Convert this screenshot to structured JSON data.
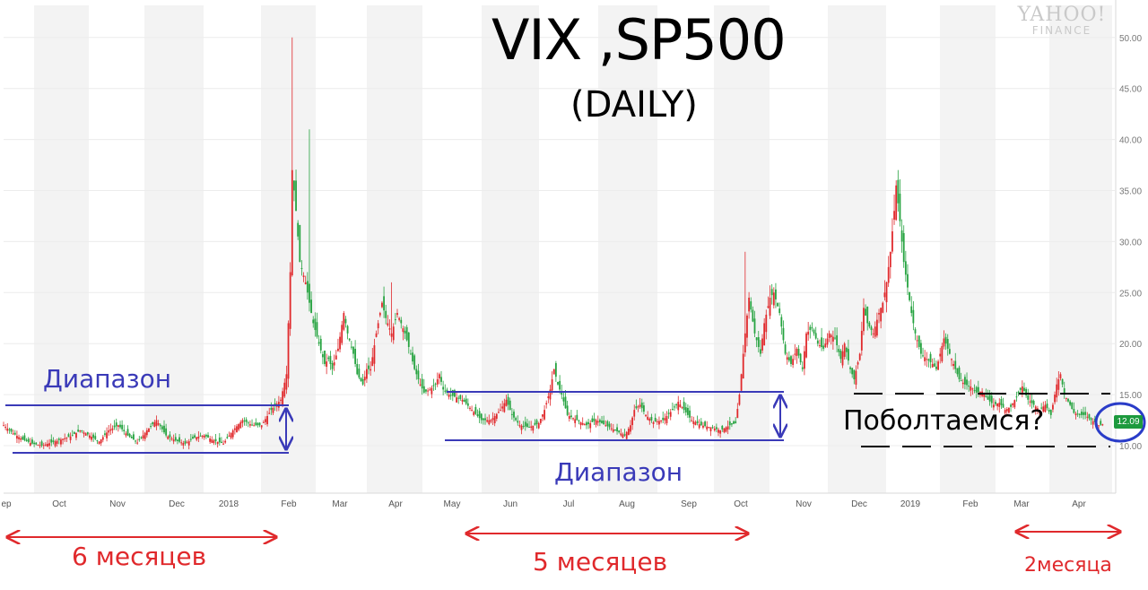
{
  "chart_data": {
    "type": "candlestick",
    "title": "VIX ,SP500",
    "subtitle": "(DAILY)",
    "ylim": [
      7.6,
      51.6
    ],
    "yticks": [
      "50.00",
      "45.00",
      "40.00",
      "35.00",
      "30.00",
      "25.00",
      "20.00",
      "15.00",
      "10.00"
    ],
    "x_ticks": [
      "ep",
      "Oct",
      "Nov",
      "Dec",
      "2018",
      "Feb",
      "Mar",
      "Apr",
      "May",
      "Jun",
      "Jul",
      "Aug",
      "Sep",
      "Oct",
      "Nov",
      "Dec",
      "2019",
      "Feb",
      "Mar",
      "Apr"
    ],
    "grid": "vertical month bands",
    "series": [
      {
        "frequency": "daily",
        "points": [
          [
            0,
            12.0
          ],
          [
            5,
            11.2
          ],
          [
            10,
            10.6
          ],
          [
            15,
            10.2
          ],
          [
            20,
            10.0
          ],
          [
            25,
            10.3
          ],
          [
            30,
            10.6
          ],
          [
            35,
            10.9
          ],
          [
            40,
            11.5
          ],
          [
            45,
            11.0
          ],
          [
            50,
            10.4
          ],
          [
            55,
            11.5
          ],
          [
            60,
            12.0
          ],
          [
            65,
            11.0
          ],
          [
            70,
            10.3
          ],
          [
            75,
            11.5
          ],
          [
            80,
            12.5
          ],
          [
            85,
            11.0
          ],
          [
            90,
            10.5
          ],
          [
            95,
            10.2
          ],
          [
            100,
            10.8
          ],
          [
            105,
            11.0
          ],
          [
            110,
            10.5
          ],
          [
            115,
            10.2
          ],
          [
            120,
            11.5
          ],
          [
            125,
            12.5
          ],
          [
            130,
            12.0
          ],
          [
            135,
            12.0
          ],
          [
            140,
            13.5
          ],
          [
            145,
            14.5
          ],
          [
            148,
            17.0
          ],
          [
            150,
            27.0
          ],
          [
            151,
            37.0
          ],
          [
            153,
            33.0
          ],
          [
            155,
            28.0
          ],
          [
            158,
            26.0
          ],
          [
            160,
            24.0
          ],
          [
            162,
            22.0
          ],
          [
            165,
            20.0
          ],
          [
            168,
            18.0
          ],
          [
            170,
            18.5
          ],
          [
            172,
            17.5
          ],
          [
            175,
            19.5
          ],
          [
            178,
            23.0
          ],
          [
            180,
            21.0
          ],
          [
            183,
            19.0
          ],
          [
            185,
            17.0
          ],
          [
            188,
            16.0
          ],
          [
            190,
            17.5
          ],
          [
            192,
            17.5
          ],
          [
            195,
            21.0
          ],
          [
            198,
            24.0
          ],
          [
            200,
            22.5
          ],
          [
            203,
            21.0
          ],
          [
            206,
            23.0
          ],
          [
            208,
            22.0
          ],
          [
            210,
            21.0
          ],
          [
            213,
            19.0
          ],
          [
            215,
            17.5
          ],
          [
            218,
            16.0
          ],
          [
            220,
            15.2
          ],
          [
            223,
            15.5
          ],
          [
            226,
            16.0
          ],
          [
            228,
            17.0
          ],
          [
            230,
            15.5
          ],
          [
            233,
            15.0
          ],
          [
            236,
            14.8
          ],
          [
            240,
            14.5
          ],
          [
            245,
            13.5
          ],
          [
            250,
            12.5
          ],
          [
            255,
            12.5
          ],
          [
            260,
            13.5
          ],
          [
            263,
            14.5
          ],
          [
            266,
            13.0
          ],
          [
            270,
            12.0
          ],
          [
            275,
            11.8
          ],
          [
            280,
            12.2
          ],
          [
            283,
            13.5
          ],
          [
            286,
            15.5
          ],
          [
            288,
            17.5
          ],
          [
            290,
            16.0
          ],
          [
            292,
            15.0
          ],
          [
            295,
            13.0
          ],
          [
            300,
            12.5
          ],
          [
            305,
            12.0
          ],
          [
            310,
            12.5
          ],
          [
            315,
            12.0
          ],
          [
            320,
            11.5
          ],
          [
            325,
            11.0
          ],
          [
            328,
            12.0
          ],
          [
            330,
            13.5
          ],
          [
            333,
            14.0
          ],
          [
            336,
            13.0
          ],
          [
            340,
            12.3
          ],
          [
            345,
            12.5
          ],
          [
            350,
            13.5
          ],
          [
            353,
            14.3
          ],
          [
            356,
            13.5
          ],
          [
            360,
            12.5
          ],
          [
            365,
            12.0
          ],
          [
            370,
            11.8
          ],
          [
            375,
            11.5
          ],
          [
            380,
            12.0
          ],
          [
            383,
            12.2
          ],
          [
            385,
            15.0
          ],
          [
            388,
            21.0
          ],
          [
            390,
            24.5
          ],
          [
            393,
            21.0
          ],
          [
            396,
            19.0
          ],
          [
            398,
            22.0
          ],
          [
            401,
            24.5
          ],
          [
            403,
            25.0
          ],
          [
            406,
            23.0
          ],
          [
            409,
            19.0
          ],
          [
            412,
            18.0
          ],
          [
            415,
            19.5
          ],
          [
            418,
            17.5
          ],
          [
            420,
            21.0
          ],
          [
            423,
            21.5
          ],
          [
            426,
            20.0
          ],
          [
            429,
            19.5
          ],
          [
            432,
            21.0
          ],
          [
            435,
            20.5
          ],
          [
            438,
            18.5
          ],
          [
            440,
            20.0
          ],
          [
            443,
            17.5
          ],
          [
            445,
            16.5
          ],
          [
            448,
            19.0
          ],
          [
            450,
            23.5
          ],
          [
            452,
            22.0
          ],
          [
            455,
            21.0
          ],
          [
            458,
            23.0
          ],
          [
            460,
            24.0
          ],
          [
            462,
            26.0
          ],
          [
            464,
            29.0
          ],
          [
            466,
            33.0
          ],
          [
            467,
            35.5
          ],
          [
            469,
            32.0
          ],
          [
            471,
            28.0
          ],
          [
            473,
            25.5
          ],
          [
            475,
            23.0
          ],
          [
            477,
            21.0
          ],
          [
            480,
            19.0
          ],
          [
            483,
            18.5
          ],
          [
            486,
            18.0
          ],
          [
            488,
            17.5
          ],
          [
            490,
            19.0
          ],
          [
            492,
            20.5
          ],
          [
            495,
            19.0
          ],
          [
            498,
            17.5
          ],
          [
            500,
            16.5
          ],
          [
            503,
            16.0
          ],
          [
            506,
            15.8
          ],
          [
            509,
            15.2
          ],
          [
            512,
            15.3
          ],
          [
            515,
            14.5
          ],
          [
            518,
            14.0
          ],
          [
            521,
            14.2
          ],
          [
            524,
            13.5
          ],
          [
            527,
            13.8
          ],
          [
            530,
            14.8
          ],
          [
            533,
            15.8
          ],
          [
            536,
            14.5
          ],
          [
            539,
            14.0
          ],
          [
            542,
            13.5
          ],
          [
            545,
            14.0
          ],
          [
            548,
            13.0
          ],
          [
            551,
            16.0
          ],
          [
            553,
            17.0
          ],
          [
            555,
            15.0
          ],
          [
            558,
            14.0
          ],
          [
            560,
            13.2
          ],
          [
            563,
            13.0
          ],
          [
            566,
            13.0
          ],
          [
            569,
            12.5
          ],
          [
            571,
            12.3
          ],
          [
            573,
            12.0
          ],
          [
            575,
            12.09
          ]
        ]
      }
    ],
    "last_value": "12.09",
    "annotations": {
      "range_label": "Диапазон",
      "question": "Поболтаемся?",
      "durations": [
        "6 месяцев",
        "5 месяцев",
        "2месяца"
      ]
    }
  },
  "colors": {
    "up": "#26a340",
    "down": "#e0292c",
    "annotation_blue": "#3a3ab8",
    "arrow_red": "#e0292c",
    "band": "#f3f3f3",
    "badge": "#1d9a3e"
  }
}
